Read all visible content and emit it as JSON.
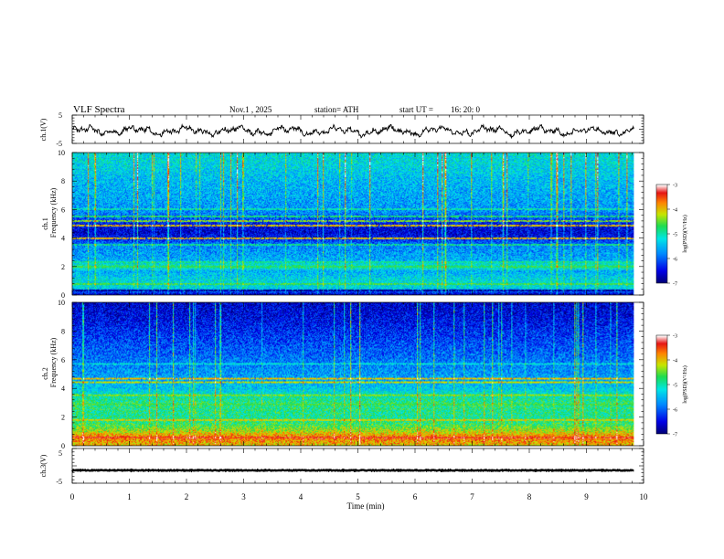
{
  "chart_data": {
    "type": "heatmap",
    "header": {
      "title": "VLF  Spectra",
      "date": "Nov.1  , 2025",
      "station": "station= ATH",
      "start_label": "start  UT  =",
      "start_time": "16: 20: 0"
    },
    "x_axis": {
      "label": "Time  (min)",
      "range": [
        0,
        10
      ],
      "ticks": [
        "0",
        "1",
        "2",
        "3",
        "4",
        "5",
        "6",
        "7",
        "8",
        "9",
        "10"
      ],
      "data_end": 9.83
    },
    "channels": [
      {
        "kind": "waveform",
        "ylabel": "ch.1(V)",
        "ylim": [
          -5,
          5
        ],
        "ticks": [
          "5",
          "-5"
        ],
        "baseline": -0.6,
        "amplitude": 1.6,
        "color": "#000000"
      },
      {
        "kind": "spectrogram",
        "ylabel_channel": "ch.1",
        "ylabel": "Frequency  (kHz)",
        "ylim": [
          0,
          10
        ],
        "ticks": [
          "0",
          "2",
          "4",
          "6",
          "8",
          "10"
        ],
        "colorbar": {
          "label": "log(PSD)(V²/Hz)",
          "range": [
            -7,
            -3
          ],
          "ticks": [
            "-3",
            "-4",
            "-5",
            "-6",
            "-7"
          ]
        },
        "bands": [
          {
            "freq": 0.1,
            "level": -6.6
          },
          {
            "freq": 0.5,
            "level": -5.3
          },
          {
            "freq": 1.0,
            "level": -5.2
          },
          {
            "freq": 1.7,
            "level": -5.6
          },
          {
            "freq": 2.0,
            "level": -4.9
          },
          {
            "freq": 2.5,
            "level": -5.6
          },
          {
            "freq": 3.0,
            "level": -5.7
          },
          {
            "freq": 3.5,
            "level": -5.8
          },
          {
            "freq": 4.0,
            "level": -6.4
          },
          {
            "freq": 4.5,
            "level": -6.6
          },
          {
            "freq": 5.0,
            "level": -6.4
          },
          {
            "freq": 5.5,
            "level": -6.0
          },
          {
            "freq": 6.0,
            "level": -5.7
          },
          {
            "freq": 7.0,
            "level": -5.6
          },
          {
            "freq": 8.0,
            "level": -5.5
          },
          {
            "freq": 9.0,
            "level": -5.3
          },
          {
            "freq": 10.0,
            "level": -5.2
          }
        ],
        "lines": [
          {
            "freq": 0.3,
            "level": -6.9
          },
          {
            "freq": 0.75,
            "level": -4.6
          },
          {
            "freq": 2.0,
            "level": -4.7
          },
          {
            "freq": 2.3,
            "level": -4.9
          },
          {
            "freq": 3.55,
            "level": -4.9
          },
          {
            "freq": 4.0,
            "level": -4.0
          },
          {
            "freq": 4.9,
            "level": -4.0
          },
          {
            "freq": 5.2,
            "level": -4.4
          },
          {
            "freq": 5.5,
            "level": -4.8
          },
          {
            "freq": 6.0,
            "level": -5.0
          }
        ]
      },
      {
        "kind": "spectrogram",
        "ylabel_channel": "ch.2",
        "ylabel": "Frequency  (kHz)",
        "ylim": [
          0,
          10
        ],
        "ticks": [
          "0",
          "2",
          "4",
          "6",
          "8",
          "10"
        ],
        "colorbar": {
          "label": "log(PSD)(V²/Hz)",
          "range": [
            -7,
            -3
          ],
          "ticks": [
            "-3",
            "-4",
            "-5",
            "-6",
            "-7"
          ]
        },
        "bands": [
          {
            "freq": 0.1,
            "level": -4.0
          },
          {
            "freq": 0.6,
            "level": -3.6
          },
          {
            "freq": 1.0,
            "level": -4.2
          },
          {
            "freq": 1.5,
            "level": -4.7
          },
          {
            "freq": 2.0,
            "level": -4.9
          },
          {
            "freq": 3.0,
            "level": -4.8
          },
          {
            "freq": 3.5,
            "level": -5.0
          },
          {
            "freq": 4.0,
            "level": -5.4
          },
          {
            "freq": 5.0,
            "level": -5.7
          },
          {
            "freq": 6.0,
            "level": -5.9
          },
          {
            "freq": 7.0,
            "level": -6.1
          },
          {
            "freq": 8.0,
            "level": -6.3
          },
          {
            "freq": 9.0,
            "level": -6.5
          },
          {
            "freq": 10.0,
            "level": -6.6
          }
        ],
        "lines": [
          {
            "freq": 0.6,
            "level": -3.4
          },
          {
            "freq": 1.8,
            "level": -4.1
          },
          {
            "freq": 2.9,
            "level": -4.6
          },
          {
            "freq": 3.5,
            "level": -4.4
          },
          {
            "freq": 4.4,
            "level": -4.2
          },
          {
            "freq": 4.7,
            "level": -4.0
          },
          {
            "freq": 5.7,
            "level": -5.2
          }
        ]
      },
      {
        "kind": "waveform",
        "ylabel": "ch.3(V)",
        "ylim": [
          -5,
          5
        ],
        "ticks": [
          "5",
          "-5"
        ],
        "baseline": -1.3,
        "amplitude": 0.25,
        "color": "#000000"
      }
    ]
  }
}
